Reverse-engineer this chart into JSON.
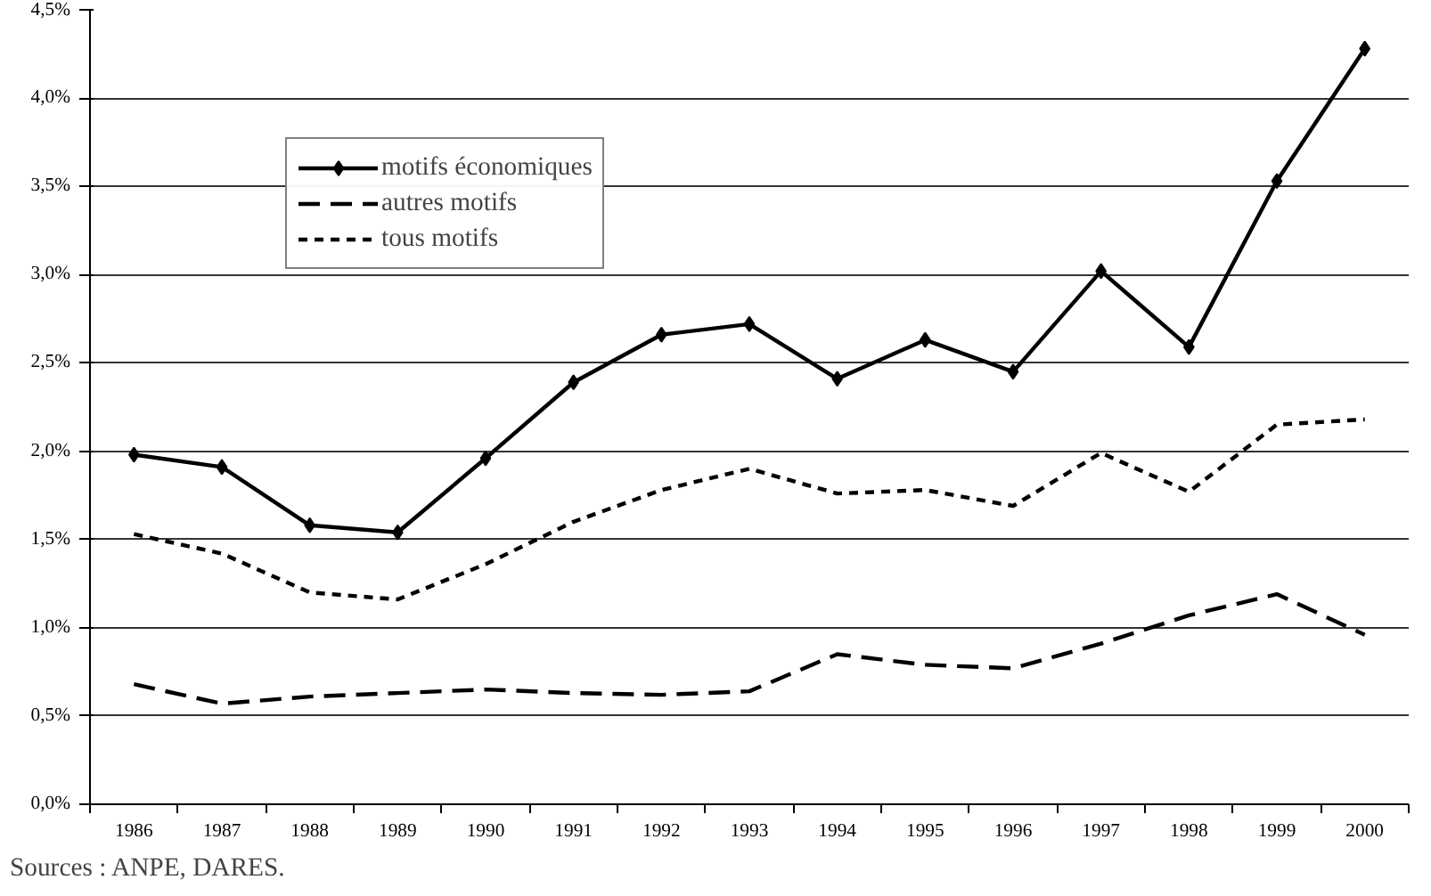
{
  "chart_data": {
    "type": "line",
    "categories": [
      "1986",
      "1987",
      "1988",
      "1989",
      "1990",
      "1991",
      "1992",
      "1993",
      "1994",
      "1995",
      "1996",
      "1997",
      "1998",
      "1999",
      "2000"
    ],
    "series": [
      {
        "name": "motifs économiques",
        "color": "#000000",
        "marker": "diamond",
        "line_style": "solid",
        "values": [
          1.98,
          1.91,
          1.58,
          1.54,
          1.96,
          2.39,
          2.66,
          2.72,
          2.41,
          2.63,
          2.45,
          3.02,
          2.59,
          3.53,
          4.28
        ]
      },
      {
        "name": "autres motifs",
        "color": "#000000",
        "marker": "none",
        "line_style": "dashed",
        "values": [
          0.68,
          0.57,
          0.61,
          0.63,
          0.65,
          0.63,
          0.62,
          0.64,
          0.85,
          0.79,
          0.77,
          0.91,
          1.07,
          1.19,
          0.96
        ]
      },
      {
        "name": "tous motifs",
        "color": "#000000",
        "marker": "none",
        "line_style": "dotted",
        "values": [
          1.53,
          1.42,
          1.2,
          1.16,
          1.36,
          1.6,
          1.78,
          1.9,
          1.76,
          1.78,
          1.69,
          1.99,
          1.77,
          2.15,
          2.18
        ]
      }
    ],
    "ylim": [
      0,
      4.5
    ],
    "yticks": [
      {
        "value": 0,
        "label": "0,0%"
      },
      {
        "value": 0.5,
        "label": "0,5%"
      },
      {
        "value": 1,
        "label": "1,0%"
      },
      {
        "value": 1.5,
        "label": "1,5%"
      },
      {
        "value": 2,
        "label": "2,0%"
      },
      {
        "value": 2.5,
        "label": "2,5%"
      },
      {
        "value": 3,
        "label": "3,0%"
      },
      {
        "value": 3.5,
        "label": "3,5%"
      },
      {
        "value": 4,
        "label": "4,0%"
      },
      {
        "value": 4.5,
        "label": "4,5%"
      }
    ],
    "grid": "y",
    "legend": "top left",
    "annotations": [
      "Sources : ANPE, DARES."
    ]
  }
}
